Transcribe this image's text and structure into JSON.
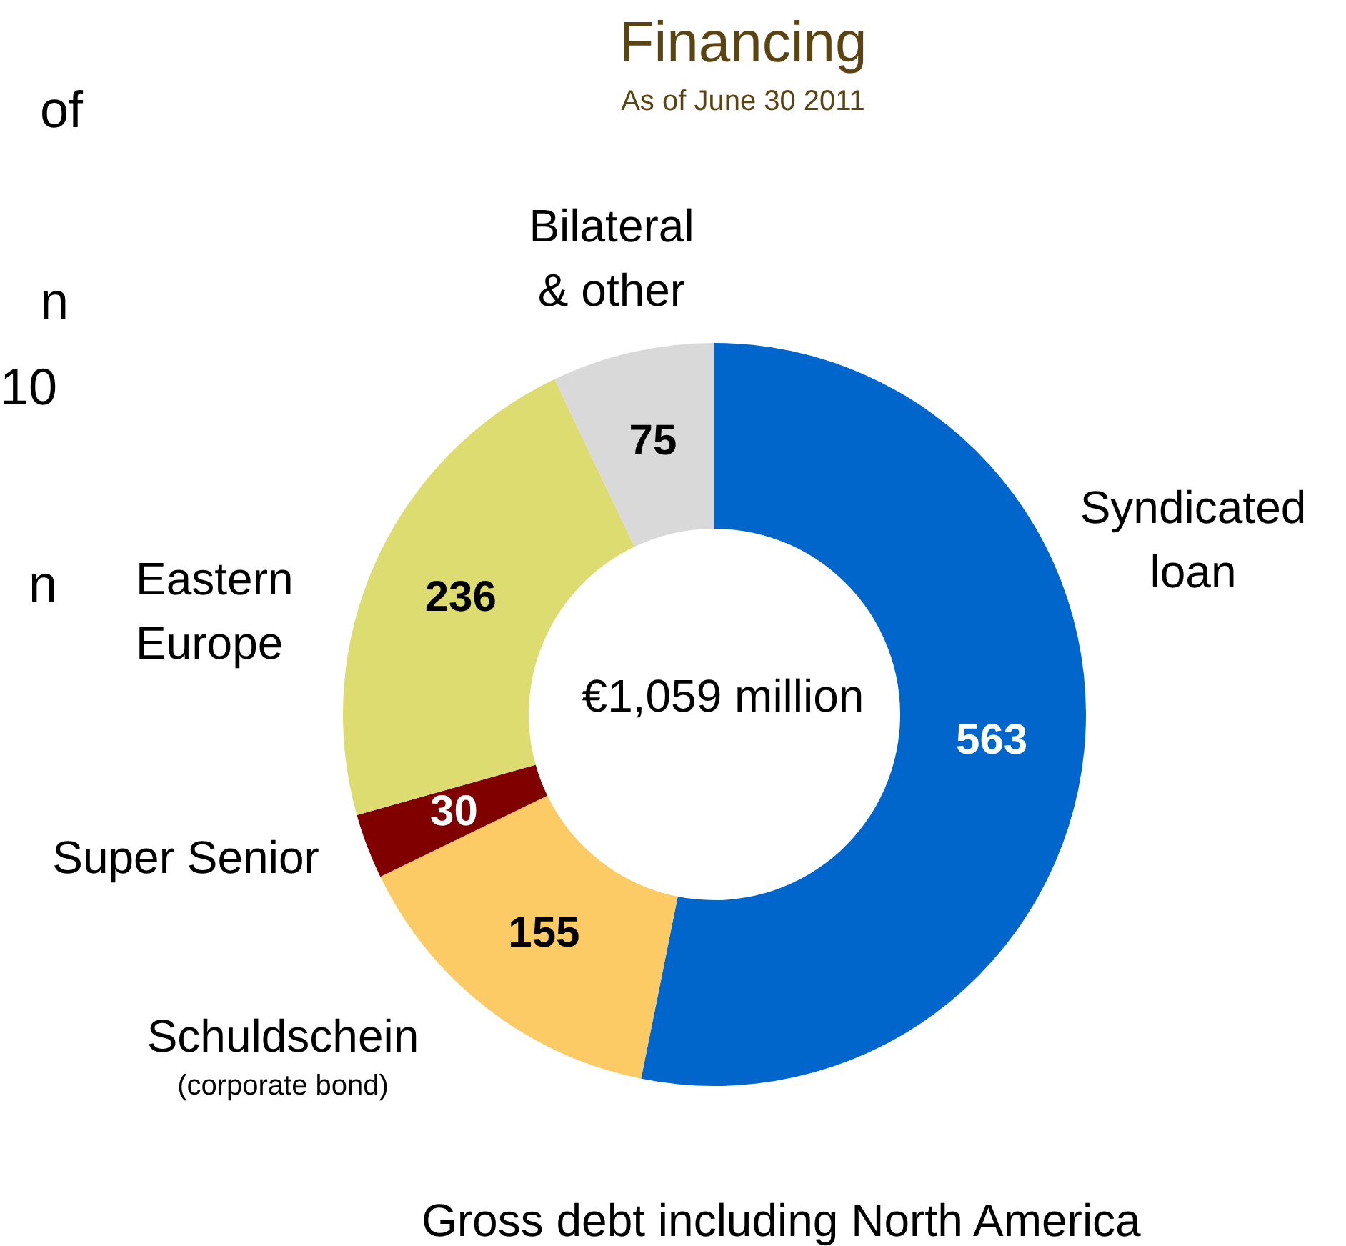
{
  "chart_data": {
    "type": "donut",
    "title": "Financing",
    "subtitle": "As of June 30 2011",
    "categories": [
      "Syndicated\nloan",
      "Schuldschein\n(corporate bond)",
      "Super Senior",
      "Eastern\nEurope",
      "Bilateral\n& other"
    ],
    "values": [
      563,
      155,
      30,
      236,
      75
    ],
    "colors": [
      "#0066cc",
      "#fccb66",
      "#800000",
      "#dcdc70",
      "#d9d9d9"
    ],
    "data_labels": true,
    "legend": false,
    "annotations": [
      "€1,059 million",
      "Gross debt including North America",
      "of",
      "n",
      "10",
      "n"
    ]
  }
}
